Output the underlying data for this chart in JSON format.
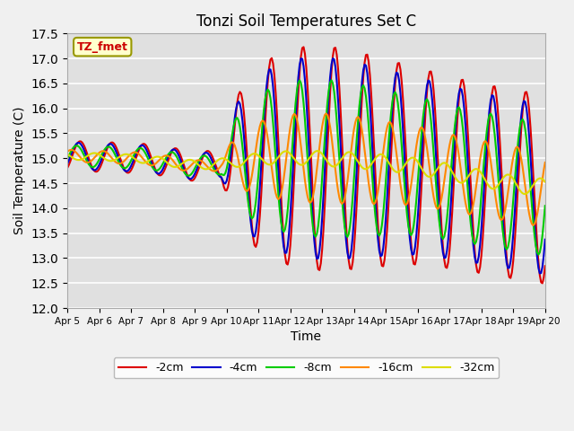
{
  "title": "Tonzi Soil Temperatures Set C",
  "xlabel": "Time",
  "ylabel": "Soil Temperature (C)",
  "ylim": [
    12.0,
    17.5
  ],
  "yticks": [
    12.0,
    12.5,
    13.0,
    13.5,
    14.0,
    14.5,
    15.0,
    15.5,
    16.0,
    16.5,
    17.0,
    17.5
  ],
  "xtick_labels": [
    "Apr 5",
    "Apr 6",
    "Apr 7",
    "Apr 8",
    "Apr 9",
    "Apr 10",
    "Apr 11",
    "Apr 12",
    "Apr 13",
    "Apr 14",
    "Apr 15",
    "Apr 16",
    "Apr 17",
    "Apr 18",
    "Apr 19",
    "Apr 20"
  ],
  "series_colors": [
    "#dd0000",
    "#0000cc",
    "#00cc00",
    "#ff8800",
    "#dddd00"
  ],
  "series_labels": [
    "-2cm",
    "-4cm",
    "-8cm",
    "-16cm",
    "-32cm"
  ],
  "plot_bg": "#e0e0e0",
  "annotation_text": "TZ_fmet",
  "annotation_color": "#cc0000",
  "annotation_bg": "#ffffcc",
  "annotation_edge": "#999900"
}
